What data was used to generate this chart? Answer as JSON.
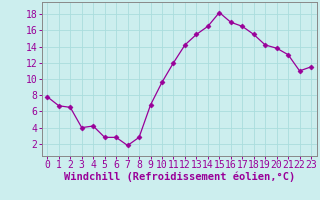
{
  "x": [
    0,
    1,
    2,
    3,
    4,
    5,
    6,
    7,
    8,
    9,
    10,
    11,
    12,
    13,
    14,
    15,
    16,
    17,
    18,
    19,
    20,
    21,
    22,
    23
  ],
  "y": [
    7.8,
    6.7,
    6.5,
    4.0,
    4.2,
    2.8,
    2.8,
    1.8,
    2.8,
    6.8,
    9.6,
    12.0,
    14.2,
    15.5,
    16.5,
    18.2,
    17.0,
    16.5,
    15.5,
    14.2,
    13.8,
    13.0,
    11.0,
    11.5
  ],
  "line_color": "#990099",
  "marker": "D",
  "marker_size": 2.5,
  "background_color": "#cceeee",
  "grid_color": "#aadddd",
  "xlabel": "Windchill (Refroidissement éolien,°C)",
  "xlabel_color": "#990099",
  "xlabel_fontsize": 7.5,
  "ylabel_ticks": [
    2,
    4,
    6,
    8,
    10,
    12,
    14,
    16,
    18
  ],
  "xtick_labels": [
    "0",
    "1",
    "2",
    "3",
    "4",
    "5",
    "6",
    "7",
    "8",
    "9",
    "10",
    "11",
    "12",
    "13",
    "14",
    "15",
    "16",
    "17",
    "18",
    "19",
    "20",
    "21",
    "22",
    "23"
  ],
  "xlim": [
    -0.5,
    23.5
  ],
  "ylim": [
    0.5,
    19.5
  ],
  "tick_color": "#990099",
  "tick_fontsize": 7.0,
  "spine_color": "#888888",
  "line_width": 0.9
}
